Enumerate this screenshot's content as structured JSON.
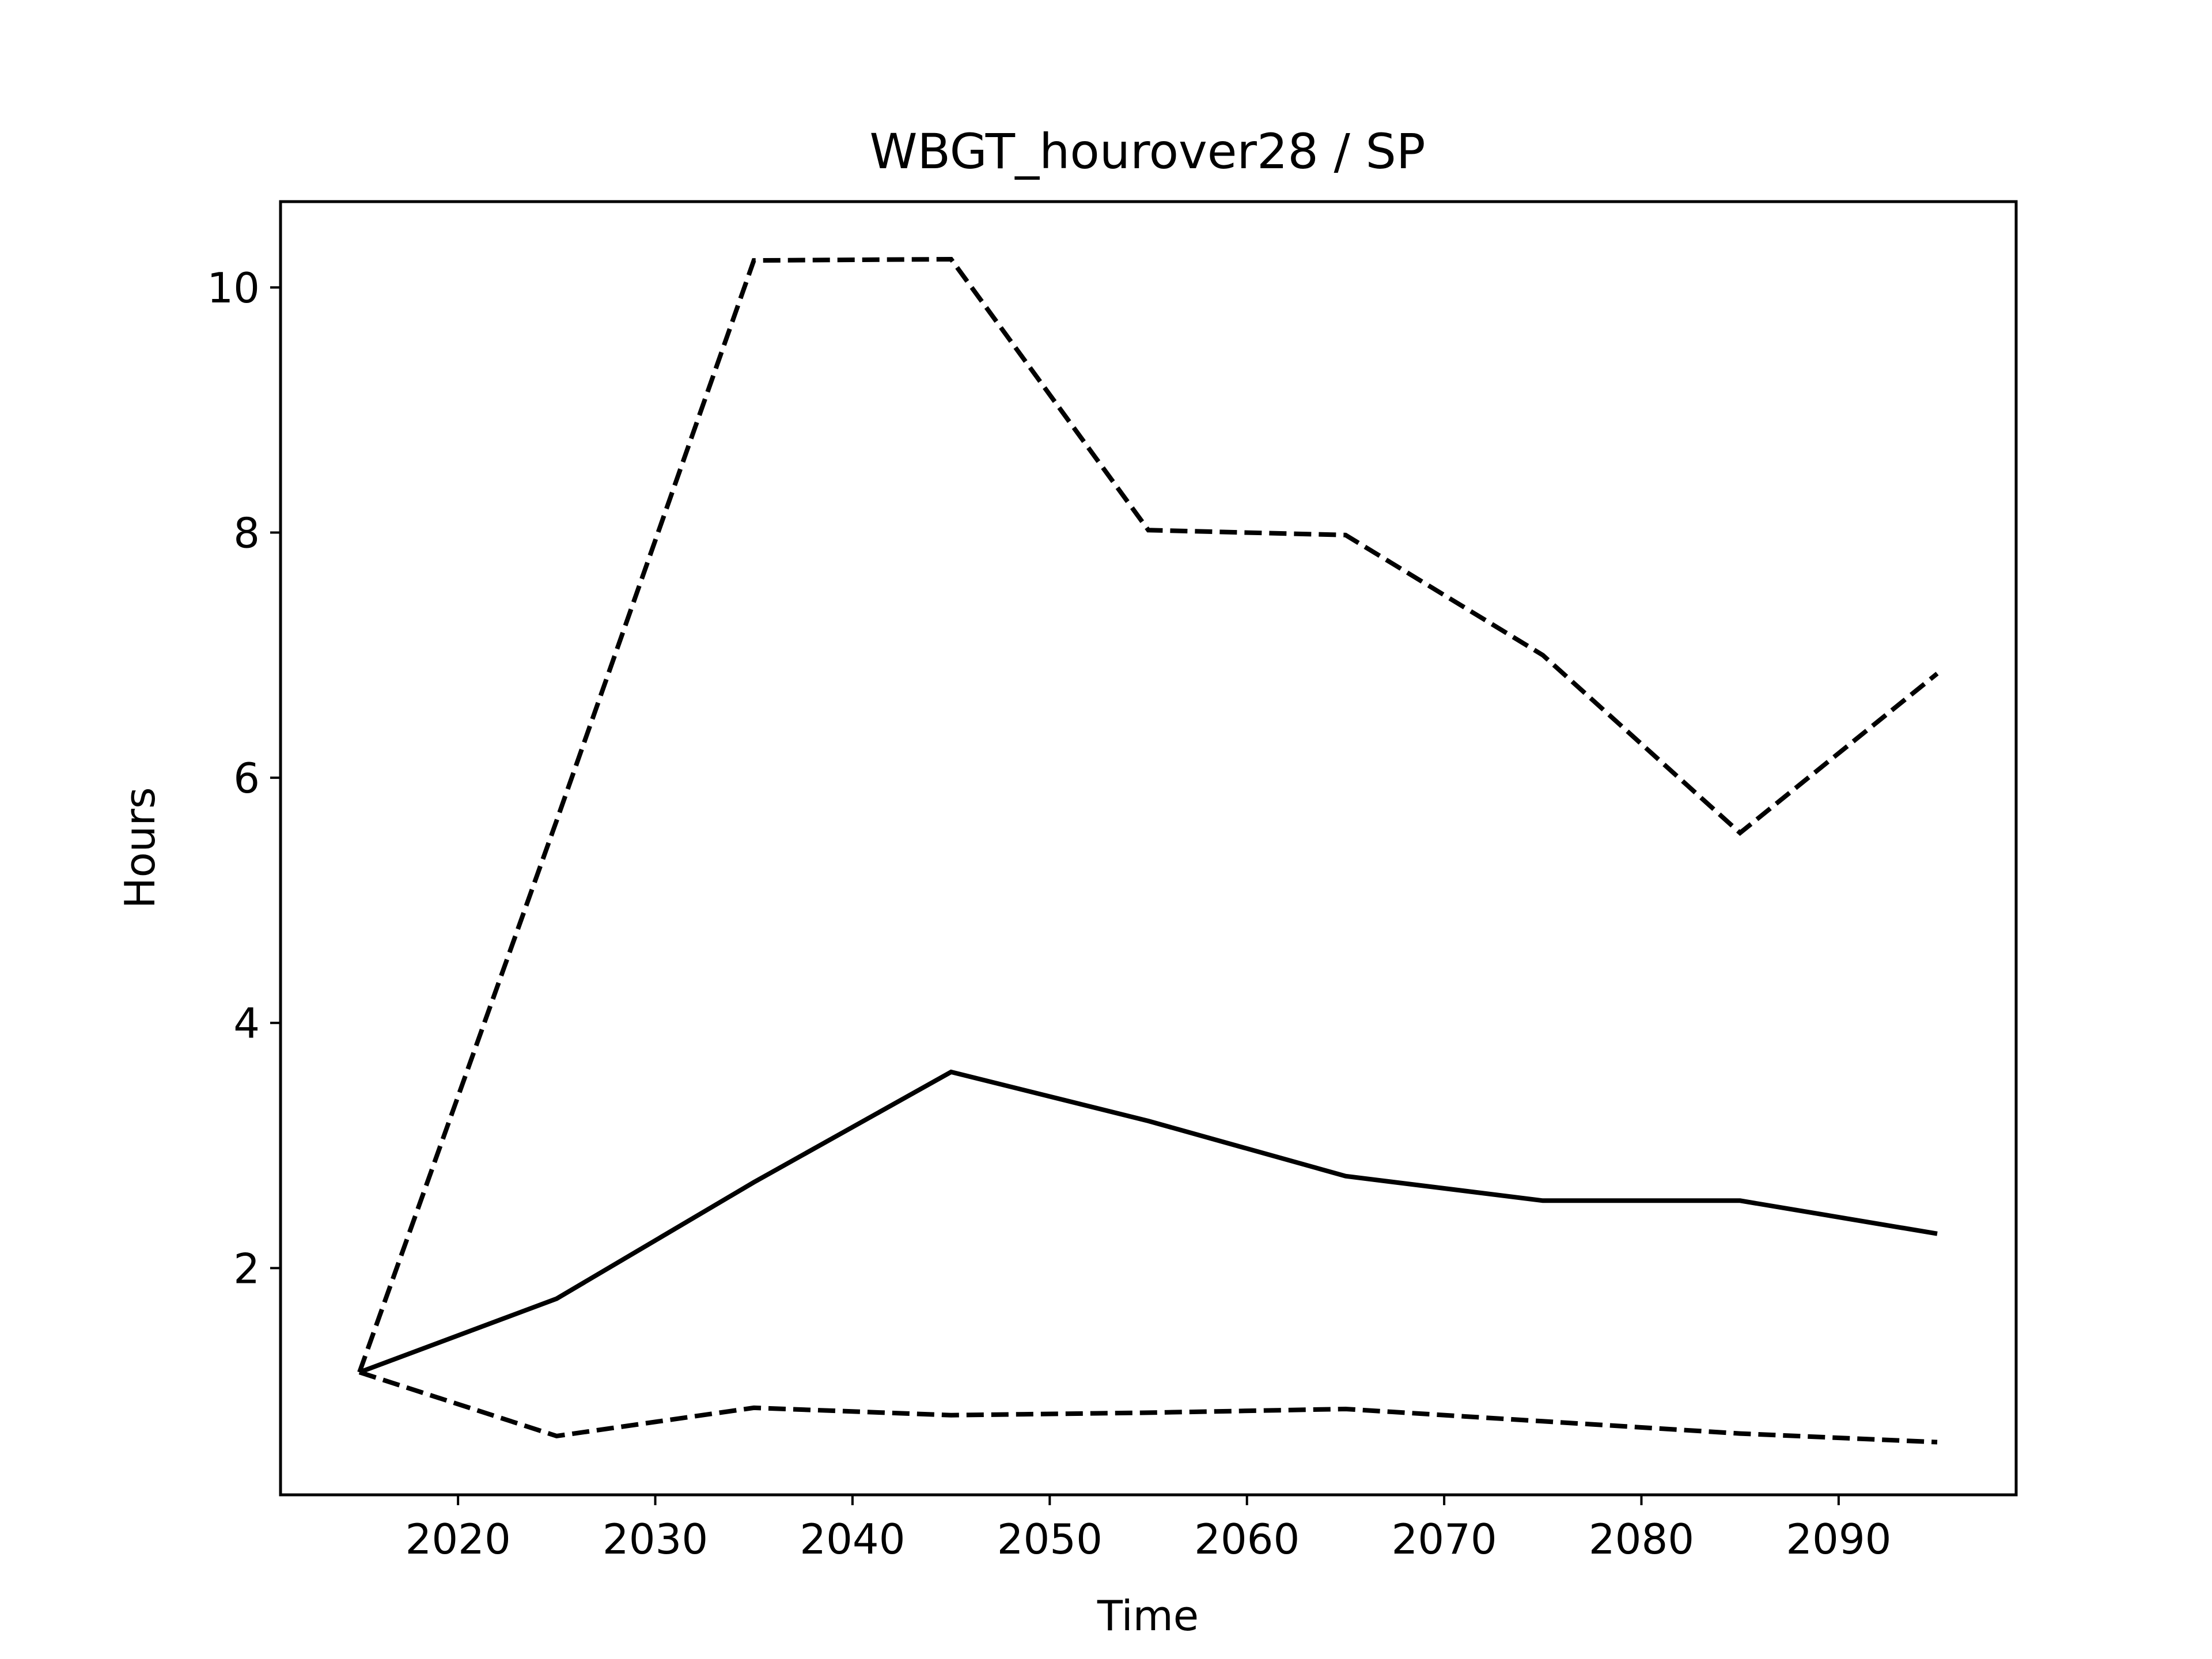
{
  "chart_data": {
    "type": "line",
    "title": "WBGT_hourover28 / SP",
    "xlabel": "Time",
    "ylabel": "Hours",
    "xlim": [
      2011,
      2099
    ],
    "ylim": [
      0.15,
      10.7
    ],
    "xticks": [
      2020,
      2030,
      2040,
      2050,
      2060,
      2070,
      2080,
      2090
    ],
    "yticks": [
      2,
      4,
      6,
      8,
      10
    ],
    "grid": false,
    "legend": "none",
    "x": [
      2015,
      2025,
      2035,
      2045,
      2055,
      2065,
      2075,
      2085,
      2095
    ],
    "series": [
      {
        "style": "solid",
        "color": "#000000",
        "values": [
          1.15,
          1.75,
          2.7,
          3.6,
          3.2,
          2.75,
          2.55,
          2.55,
          2.28
        ]
      },
      {
        "style": "dashed",
        "color": "#000000",
        "values": [
          1.15,
          5.65,
          10.22,
          10.23,
          8.02,
          7.98,
          7.0,
          5.55,
          6.85
        ]
      },
      {
        "style": "dashed",
        "color": "#000000",
        "values": [
          1.15,
          0.63,
          0.86,
          0.8,
          0.82,
          0.85,
          0.75,
          0.65,
          0.58
        ]
      }
    ]
  }
}
